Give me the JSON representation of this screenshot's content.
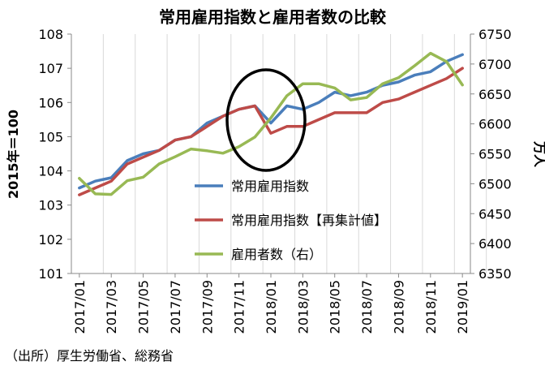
{
  "chart_data": {
    "type": "line",
    "title": "常用雇用指数と雇用者数の比較",
    "ylabel_left": "2015年＝100",
    "ylabel_right": "万人",
    "ylim_left": [
      101,
      108
    ],
    "ylim_right": [
      6350,
      6750
    ],
    "yticks_left": [
      "101",
      "102",
      "103",
      "104",
      "105",
      "106",
      "107",
      "108"
    ],
    "yticks_right": [
      "6350",
      "6400",
      "6450",
      "6500",
      "6550",
      "6600",
      "6650",
      "6700",
      "6750"
    ],
    "x_tick_labels": [
      "2017/01",
      "2017/03",
      "2017/05",
      "2017/07",
      "2017/09",
      "2017/11",
      "2018/01",
      "2018/03",
      "2018/05",
      "2018/07",
      "2018/09",
      "2018/11",
      "2019/01"
    ],
    "x": [
      "2017/01",
      "2017/02",
      "2017/03",
      "2017/04",
      "2017/05",
      "2017/06",
      "2017/07",
      "2017/08",
      "2017/09",
      "2017/10",
      "2017/11",
      "2017/12",
      "2018/01",
      "2018/02",
      "2018/03",
      "2018/04",
      "2018/05",
      "2018/06",
      "2018/07",
      "2018/08",
      "2018/09",
      "2018/10",
      "2018/11",
      "2018/12",
      "2019/01"
    ],
    "series": [
      {
        "name": "常用雇用指数",
        "axis": "left",
        "color": "#4a7ebb",
        "values": [
          103.5,
          103.7,
          103.8,
          104.3,
          104.5,
          104.6,
          104.9,
          105.0,
          105.4,
          105.6,
          105.8,
          105.9,
          105.4,
          105.9,
          105.8,
          106.0,
          106.3,
          106.2,
          106.3,
          106.5,
          106.6,
          106.8,
          106.9,
          107.2,
          107.4
        ]
      },
      {
        "name": "常用雇用指数【再集計値】",
        "axis": "left",
        "color": "#be4b48",
        "values": [
          103.3,
          103.5,
          103.7,
          104.2,
          104.4,
          104.6,
          104.9,
          105.0,
          105.3,
          105.6,
          105.8,
          105.9,
          105.1,
          105.3,
          105.3,
          105.5,
          105.7,
          105.7,
          105.7,
          106.0,
          106.1,
          106.3,
          106.5,
          106.7,
          107.0
        ]
      },
      {
        "name": "雇用者数（右）",
        "axis": "right",
        "color": "#98b954",
        "values": [
          6509,
          6483,
          6482,
          6505,
          6511,
          6533,
          6545,
          6558,
          6555,
          6551,
          6562,
          6578,
          6610,
          6647,
          6667,
          6667,
          6660,
          6640,
          6644,
          6667,
          6677,
          6697,
          6718,
          6704,
          6665
        ]
      }
    ],
    "legend_placement": "center",
    "annotation": "ellipse around 2018/01",
    "grid": "vertical"
  },
  "source": "（出所）厚生労働省、総務省"
}
